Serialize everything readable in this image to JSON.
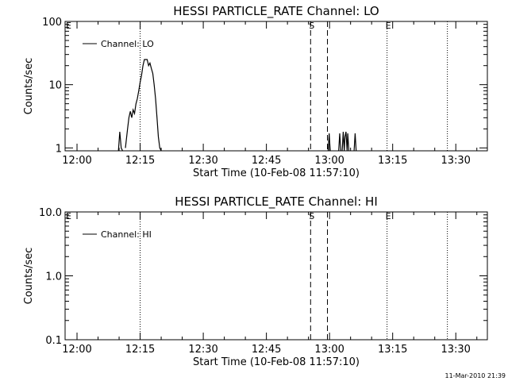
{
  "timestamp": "11-Mar-2010 21:39",
  "chart_data": [
    {
      "type": "line",
      "title": "HESSI PARTICLE_RATE Channel: LO",
      "xlabel": "Start Time (10-Feb-08 11:57:10)",
      "ylabel": "Counts/sec",
      "yscale": "log",
      "ylim": [
        0.9,
        100
      ],
      "xlim_minutes": [
        "11:57:10",
        "13:37:30"
      ],
      "x_ticks": [
        "12:00",
        "12:15",
        "12:30",
        "12:45",
        "13:00",
        "13:15",
        "13:30"
      ],
      "y_ticks": [
        {
          "value": 1,
          "label": "1"
        },
        {
          "value": 10,
          "label": "10"
        },
        {
          "value": 100,
          "label": "100"
        }
      ],
      "legend": {
        "label": "Channel: LO",
        "placement": "top-left"
      },
      "markers": [
        {
          "time": "12:15",
          "style": "dotted",
          "label": ""
        },
        {
          "time": "12:55:30",
          "style": "dashed",
          "label": "S"
        },
        {
          "time": "12:59:30",
          "style": "dashed",
          "label": ""
        },
        {
          "time": "13:13:40",
          "style": "dotted",
          "label": "E"
        },
        {
          "time": "13:28:00",
          "style": "dotted",
          "label": ""
        }
      ],
      "edge_labels": {
        "left": "E"
      },
      "series": [
        {
          "segments": [
            [
              [
                "12:09:50",
                0.9
              ],
              [
                "12:10:10",
                1.8
              ],
              [
                "12:10:30",
                1.0
              ],
              [
                "12:10:50",
                0.9
              ]
            ],
            [
              [
                "12:11:30",
                1.0
              ],
              [
                "12:12:00",
                2.0
              ],
              [
                "12:12:20",
                3.0
              ],
              [
                "12:12:40",
                3.8
              ],
              [
                "12:13:00",
                3.0
              ],
              [
                "12:13:20",
                4.0
              ],
              [
                "12:13:40",
                3.5
              ],
              [
                "12:14:00",
                5.0
              ],
              [
                "12:14:20",
                6.0
              ],
              [
                "12:14:40",
                8.0
              ],
              [
                "12:15:00",
                11.0
              ],
              [
                "12:15:20",
                14.0
              ],
              [
                "12:15:40",
                20.0
              ],
              [
                "12:16:00",
                25.0
              ],
              [
                "12:16:40",
                25.0
              ],
              [
                "12:17:00",
                20.0
              ],
              [
                "12:17:20",
                22.0
              ],
              [
                "12:17:40",
                18.0
              ],
              [
                "12:18:00",
                15.0
              ],
              [
                "12:18:20",
                10.0
              ],
              [
                "12:18:40",
                6.0
              ],
              [
                "12:19:00",
                3.0
              ],
              [
                "12:19:20",
                1.5
              ],
              [
                "12:19:40",
                1.0
              ],
              [
                "12:20:00",
                0.9
              ]
            ],
            [
              [
                "12:59:40",
                0.9
              ],
              [
                "12:59:55",
                1.7
              ],
              [
                "13:00:10",
                0.9
              ]
            ],
            [
              [
                "13:02:10",
                0.9
              ],
              [
                "13:02:25",
                1.7
              ],
              [
                "13:02:40",
                0.9
              ]
            ],
            [
              [
                "13:03:00",
                0.9
              ],
              [
                "13:03:15",
                1.8
              ],
              [
                "13:03:30",
                0.9
              ],
              [
                "13:03:40",
                1.5
              ],
              [
                "13:03:55",
                1.8
              ],
              [
                "13:04:10",
                0.9
              ],
              [
                "13:04:20",
                1.7
              ],
              [
                "13:04:35",
                0.9
              ]
            ],
            [
              [
                "13:05:50",
                0.9
              ],
              [
                "13:06:05",
                1.7
              ],
              [
                "13:06:20",
                0.9
              ]
            ]
          ]
        }
      ]
    },
    {
      "type": "line",
      "title": "HESSI PARTICLE_RATE Channel: HI",
      "xlabel": "Start Time (10-Feb-08 11:57:10)",
      "ylabel": "Counts/sec",
      "yscale": "log",
      "ylim": [
        0.1,
        10
      ],
      "xlim_minutes": [
        "11:57:10",
        "13:37:30"
      ],
      "x_ticks": [
        "12:00",
        "12:15",
        "12:30",
        "12:45",
        "13:00",
        "13:15",
        "13:30"
      ],
      "y_ticks": [
        {
          "value": 0.1,
          "label": "0.1"
        },
        {
          "value": 1,
          "label": "1.0"
        },
        {
          "value": 10,
          "label": "10.0"
        }
      ],
      "legend": {
        "label": "Channel: HI",
        "placement": "top-left"
      },
      "markers": [
        {
          "time": "12:15",
          "style": "dotted",
          "label": ""
        },
        {
          "time": "12:55:30",
          "style": "dashed",
          "label": "S"
        },
        {
          "time": "12:59:30",
          "style": "dashed",
          "label": ""
        },
        {
          "time": "13:13:40",
          "style": "dotted",
          "label": "E"
        },
        {
          "time": "13:28:00",
          "style": "dotted",
          "label": ""
        }
      ],
      "edge_labels": {
        "left": "E"
      },
      "series": [
        {
          "segments": []
        }
      ]
    }
  ]
}
